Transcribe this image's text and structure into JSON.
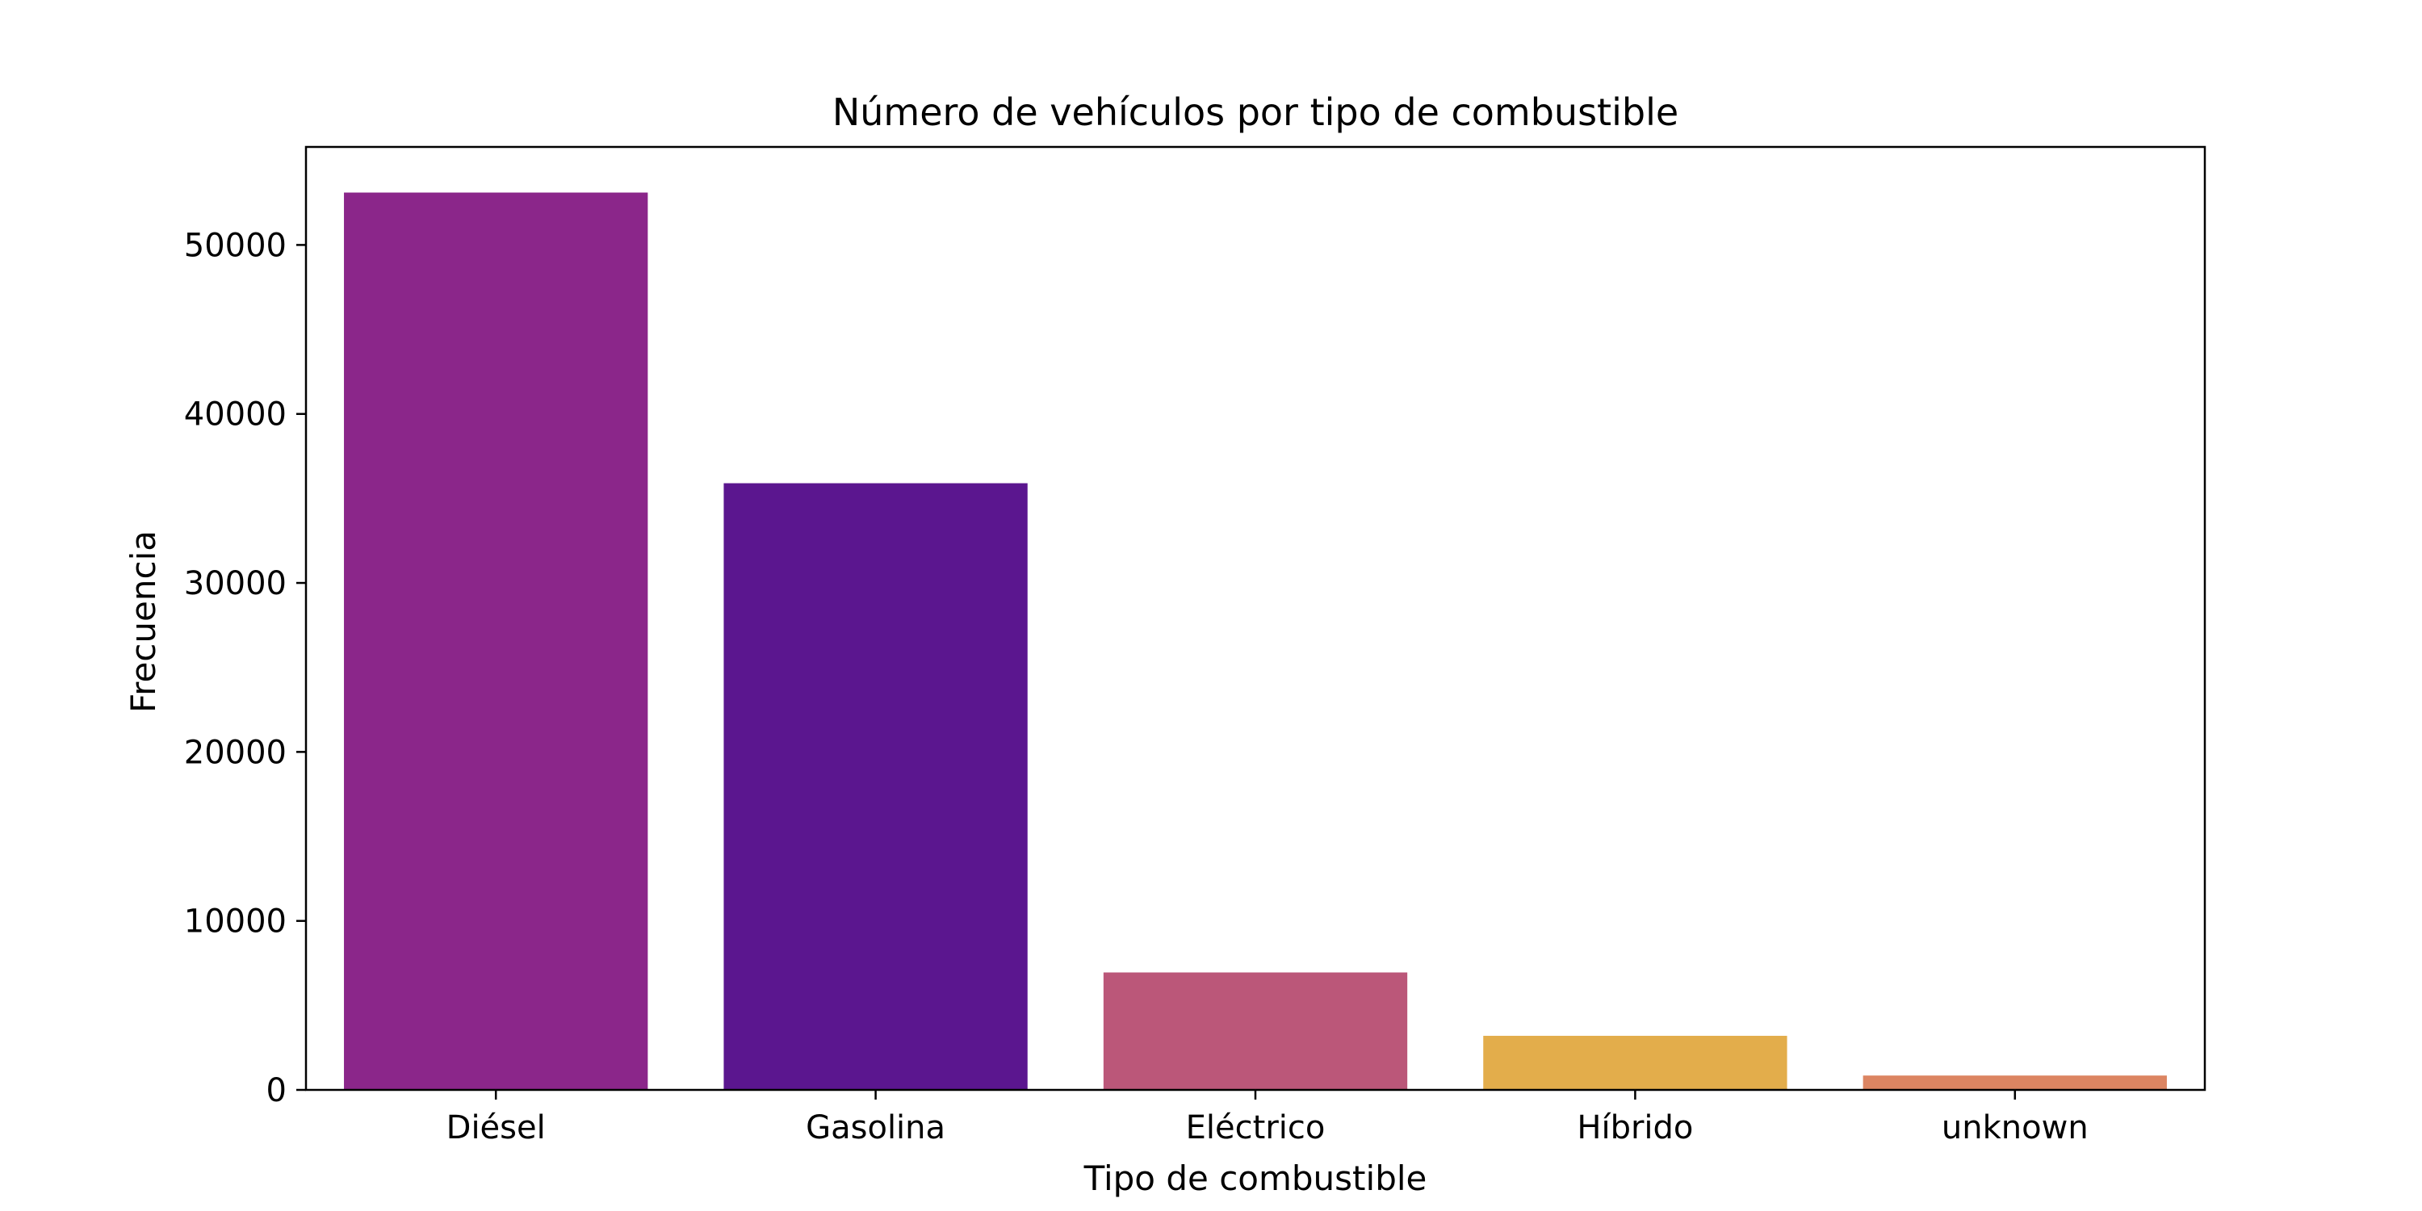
{
  "chart_data": {
    "type": "bar",
    "title": "Número de vehículos por tipo de combustible",
    "xlabel": "Tipo de combustible",
    "ylabel": "Frecuencia",
    "categories": [
      "Diésel",
      "Gasolina",
      "Eléctrico",
      "Híbrido",
      "unknown"
    ],
    "values": [
      53100,
      35900,
      6950,
      3200,
      850
    ],
    "colors": [
      "#8b268a",
      "#5b168f",
      "#bb5779",
      "#e3ad4b",
      "#dc8562"
    ],
    "ylim": [
      0,
      55800
    ],
    "yticks": [
      0,
      10000,
      20000,
      30000,
      40000,
      50000
    ],
    "grid": false,
    "legend": "none"
  }
}
